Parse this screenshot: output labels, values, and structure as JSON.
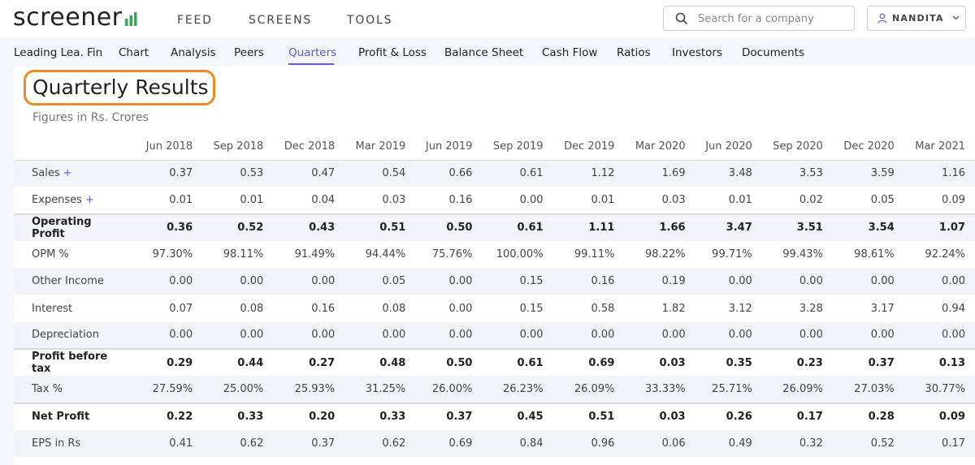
{
  "header": {
    "logo": "screener",
    "nav": [
      "FEED",
      "SCREENS",
      "TOOLS"
    ],
    "search_placeholder": "Search for a company",
    "user_name": "NANDITA"
  },
  "subnav": {
    "tabs": [
      "Leading Lea. Fin",
      "Chart",
      "Analysis",
      "Peers",
      "Quarters",
      "Profit & Loss",
      "Balance Sheet",
      "Cash Flow",
      "Ratios",
      "Investors",
      "Documents"
    ],
    "active": "Quarters"
  },
  "section": {
    "title": "Quarterly Results",
    "subtitle": "Figures in Rs. Crores"
  },
  "table": {
    "columns": [
      "Jun 2018",
      "Sep 2018",
      "Dec 2018",
      "Mar 2019",
      "Jun 2019",
      "Sep 2019",
      "Dec 2019",
      "Mar 2020",
      "Jun 2020",
      "Sep 2020",
      "Dec 2020",
      "Mar 2021"
    ],
    "rows": [
      {
        "label": "Sales",
        "expandable": true,
        "bold": false,
        "values": [
          "0.37",
          "0.53",
          "0.47",
          "0.54",
          "0.66",
          "0.61",
          "1.12",
          "1.69",
          "3.48",
          "3.53",
          "3.59",
          "1.16"
        ]
      },
      {
        "label": "Expenses",
        "expandable": true,
        "bold": false,
        "values": [
          "0.01",
          "0.01",
          "0.04",
          "0.03",
          "0.16",
          "0.00",
          "0.01",
          "0.03",
          "0.01",
          "0.02",
          "0.05",
          "0.09"
        ]
      },
      {
        "label": "Operating Profit",
        "expandable": false,
        "bold": true,
        "values": [
          "0.36",
          "0.52",
          "0.43",
          "0.51",
          "0.50",
          "0.61",
          "1.11",
          "1.66",
          "3.47",
          "3.51",
          "3.54",
          "1.07"
        ]
      },
      {
        "label": "OPM %",
        "expandable": false,
        "bold": false,
        "values": [
          "97.30%",
          "98.11%",
          "91.49%",
          "94.44%",
          "75.76%",
          "100.00%",
          "99.11%",
          "98.22%",
          "99.71%",
          "99.43%",
          "98.61%",
          "92.24%"
        ]
      },
      {
        "label": "Other Income",
        "expandable": false,
        "bold": false,
        "values": [
          "0.00",
          "0.00",
          "0.00",
          "0.05",
          "0.00",
          "0.15",
          "0.16",
          "0.19",
          "0.00",
          "0.00",
          "0.00",
          "0.00"
        ]
      },
      {
        "label": "Interest",
        "expandable": false,
        "bold": false,
        "values": [
          "0.07",
          "0.08",
          "0.16",
          "0.08",
          "0.00",
          "0.15",
          "0.58",
          "1.82",
          "3.12",
          "3.28",
          "3.17",
          "0.94"
        ]
      },
      {
        "label": "Depreciation",
        "expandable": false,
        "bold": false,
        "values": [
          "0.00",
          "0.00",
          "0.00",
          "0.00",
          "0.00",
          "0.00",
          "0.00",
          "0.00",
          "0.00",
          "0.00",
          "0.00",
          "0.00"
        ]
      },
      {
        "label": "Profit before tax",
        "expandable": false,
        "bold": true,
        "values": [
          "0.29",
          "0.44",
          "0.27",
          "0.48",
          "0.50",
          "0.61",
          "0.69",
          "0.03",
          "0.35",
          "0.23",
          "0.37",
          "0.13"
        ]
      },
      {
        "label": "Tax %",
        "expandable": false,
        "bold": false,
        "values": [
          "27.59%",
          "25.00%",
          "25.93%",
          "31.25%",
          "26.00%",
          "26.23%",
          "26.09%",
          "33.33%",
          "25.71%",
          "26.09%",
          "27.03%",
          "30.77%"
        ]
      },
      {
        "label": "Net Profit",
        "expandable": false,
        "bold": true,
        "values": [
          "0.22",
          "0.33",
          "0.20",
          "0.33",
          "0.37",
          "0.45",
          "0.51",
          "0.03",
          "0.26",
          "0.17",
          "0.28",
          "0.09"
        ]
      },
      {
        "label": "EPS in Rs",
        "expandable": false,
        "bold": false,
        "values": [
          "0.41",
          "0.62",
          "0.37",
          "0.62",
          "0.69",
          "0.84",
          "0.96",
          "0.06",
          "0.49",
          "0.32",
          "0.52",
          "0.17"
        ]
      }
    ]
  },
  "colors": {
    "accent": "#5b5bd6",
    "highlight_box": "#f08a24",
    "logo_bars": "#34a853"
  }
}
